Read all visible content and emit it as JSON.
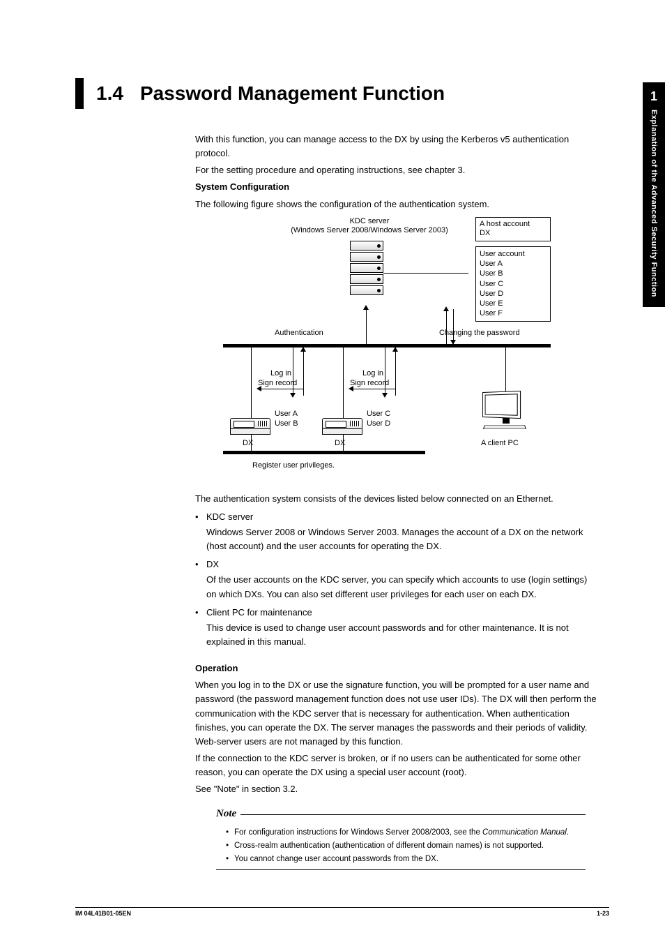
{
  "sidebar": {
    "chapter_number": "1",
    "chapter_title": "Explanation of the Advanced Security Function"
  },
  "heading": {
    "number": "1.4",
    "title": "Password Management Function"
  },
  "intro": {
    "p1": "With this function, you can manage access to the DX by using the Kerberos v5 authentication protocol.",
    "p2": "For the setting procedure and operating instructions, see chapter 3.",
    "syscfg_heading": "System Configuration",
    "syscfg_p": "The following figure shows the configuration of the authentication system."
  },
  "diagram": {
    "kdc_label_line1": "KDC server",
    "kdc_label_line2": "(Windows Server 2008/Windows Server 2003)",
    "host_box_l1": "A host account",
    "host_box_l2": "DX",
    "user_box_title": "User account",
    "user_box_items": [
      "User A",
      "User B",
      "User C",
      "User D",
      "User E",
      "User F"
    ],
    "auth_label": "Authentication",
    "chpw_label": "Changing the password",
    "login_label": "Log in",
    "sign_label": "Sign record",
    "user_a": "User A",
    "user_b": "User B",
    "user_c": "User C",
    "user_d": "User D",
    "dx_label": "DX",
    "client_pc": "A client PC",
    "register_label": "Register user privileges."
  },
  "body": {
    "devices_intro": "The authentication system consists of the devices listed below connected on an Ethernet.",
    "kdc_name": "KDC server",
    "kdc_desc": "Windows Server 2008 or Windows Server 2003. Manages the account of a DX on the network (host account) and the user accounts for operating the DX.",
    "dx_name": "DX",
    "dx_desc": "Of the user accounts on the KDC server, you can specify which accounts to use (login settings) on which DXs. You can also set different user privileges for each user on each DX.",
    "client_name": "Client PC for maintenance",
    "client_desc": "This device is used to change user account passwords and for other maintenance. It is not explained in this manual.",
    "op_heading": "Operation",
    "op_p1": "When you log in to the DX or use the signature function, you will be prompted for a user name and password (the password management function does not use user IDs). The DX will then perform the communication with the KDC server that is necessary for authentication. When authentication finishes, you can operate the DX. The server manages the passwords and their periods of validity. Web-server users are not managed by this function.",
    "op_p2": "If the connection to the KDC server is broken, or if no users can be authenticated for some other reason, you can operate the DX using a special user account (root).",
    "op_p3": "See \"Note\" in section 3.2."
  },
  "note": {
    "label": "Note",
    "n1a": "For configuration instructions for Windows Server 2008/2003, see the ",
    "n1b": "Communication Manual",
    "n1c": ".",
    "n2": "Cross-realm authentication (authentication of different domain names) is not supported.",
    "n3": "You cannot change user account passwords from the DX."
  },
  "footer": {
    "left": "IM 04L41B01-05EN",
    "right": "1-23"
  }
}
